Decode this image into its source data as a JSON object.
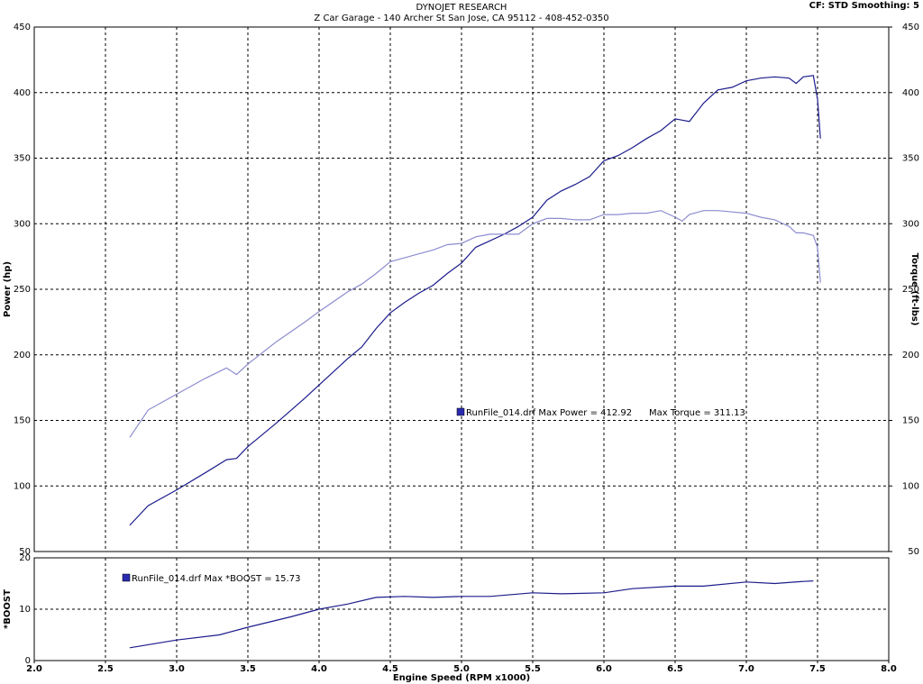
{
  "chart_data": [
    {
      "type": "line",
      "title": "DYNOJET RESEARCH",
      "subtitle": "Z Car Garage - 140 Archer St San Jose, CA 95112 - 408-452-0350",
      "corner_text": "CF: STD  Smoothing: 5",
      "y_label": "Power (hp)",
      "y2_label": "Torque (ft-lbs)",
      "annotations": [
        "RunFile_014.drf Max Power = 412.92",
        "Max Torque = 311.13"
      ],
      "xlim": [
        2,
        8
      ],
      "ylim": [
        50,
        450
      ],
      "yticks": [
        50,
        100,
        150,
        200,
        250,
        300,
        350,
        400,
        450
      ],
      "y2lim": [
        50,
        450
      ],
      "y2ticks": [
        50,
        100,
        150,
        200,
        250,
        300,
        350,
        400,
        450
      ],
      "grid": true,
      "x": [
        2.67,
        2.8,
        3.0,
        3.2,
        3.35,
        3.42,
        3.5,
        3.7,
        3.9,
        4.0,
        4.2,
        4.3,
        4.4,
        4.5,
        4.6,
        4.7,
        4.8,
        4.9,
        5.0,
        5.1,
        5.2,
        5.3,
        5.4,
        5.5,
        5.6,
        5.7,
        5.8,
        5.9,
        6.0,
        6.1,
        6.2,
        6.3,
        6.4,
        6.5,
        6.55,
        6.6,
        6.7,
        6.8,
        6.9,
        7.0,
        7.1,
        7.2,
        7.3,
        7.35,
        7.4,
        7.47,
        7.5,
        7.52
      ],
      "series": [
        {
          "name": "Power",
          "color": "#1c1c8c",
          "values": [
            70,
            85,
            97,
            110,
            120,
            121,
            130,
            148,
            167,
            177,
            197,
            206,
            220,
            232,
            240,
            247,
            253,
            262,
            270,
            282,
            287,
            292,
            298,
            305,
            318,
            325,
            330,
            336,
            348,
            352,
            358,
            365,
            371,
            380,
            379,
            378,
            392,
            402,
            404,
            409,
            411,
            412,
            411,
            407,
            412,
            413,
            395,
            365
          ]
        },
        {
          "name": "Torque",
          "color": "#8c8cd0",
          "axis": "y2",
          "values": [
            137,
            158,
            170,
            182,
            190,
            185,
            193,
            210,
            225,
            233,
            248,
            254,
            262,
            271,
            274,
            277,
            280,
            284,
            285,
            290,
            292,
            292,
            292,
            300,
            304,
            304,
            303,
            303,
            307,
            307,
            308,
            308,
            310,
            305,
            302,
            307,
            310,
            310,
            309,
            308,
            305,
            303,
            298,
            293,
            293,
            291,
            282,
            255
          ]
        }
      ]
    },
    {
      "type": "line",
      "y_label": "*BOOST",
      "x_label": "Engine Speed (RPM x1000)",
      "annotations": [
        "RunFile_014.drf Max *BOOST = 15.73"
      ],
      "xlim": [
        2,
        8
      ],
      "xticks": [
        {
          "value": 2,
          "label": "2.0"
        },
        2.5,
        {
          "value": 3,
          "label": "3.0"
        },
        3.5,
        {
          "value": 4,
          "label": "4.0"
        },
        4.5,
        {
          "value": 5,
          "label": "5.0"
        },
        5.5,
        {
          "value": 6,
          "label": "6.0"
        },
        6.5,
        {
          "value": 7,
          "label": "7.0"
        },
        7.5,
        {
          "value": 8,
          "label": "8.0"
        }
      ],
      "ylim": [
        0,
        20
      ],
      "yticks": [
        0,
        10,
        20
      ],
      "grid": true,
      "x": [
        2.67,
        3.0,
        3.3,
        3.5,
        3.8,
        4.0,
        4.2,
        4.4,
        4.6,
        4.8,
        5.0,
        5.2,
        5.5,
        5.7,
        6.0,
        6.2,
        6.5,
        6.7,
        7.0,
        7.2,
        7.4,
        7.47
      ],
      "series": [
        {
          "name": "Boost",
          "color": "#1c1c8c",
          "values": [
            2.5,
            4,
            5,
            6.5,
            8.5,
            10,
            11,
            12.3,
            12.5,
            12.3,
            12.5,
            12.5,
            13.2,
            13,
            13.2,
            14,
            14.5,
            14.5,
            15.3,
            15,
            15.4,
            15.5
          ]
        }
      ]
    }
  ]
}
